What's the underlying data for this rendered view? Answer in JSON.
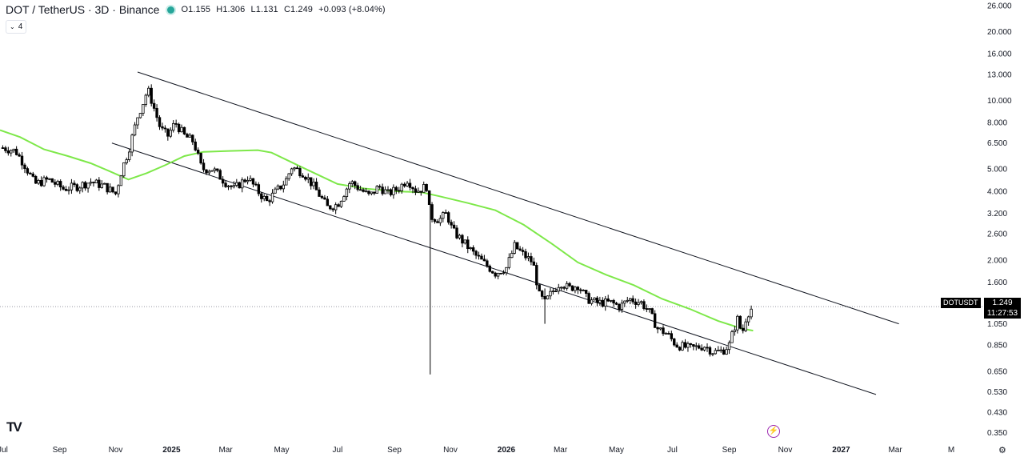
{
  "header": {
    "symbol": "DOT / TetherUS · 3D · Binance",
    "status_color": "#26a69a",
    "open": "O1.155",
    "high": "H1.306",
    "low": "L1.131",
    "close": "C1.249",
    "change": "+0.093 (+8.04%)"
  },
  "indicator_toggle": {
    "icon": "chevron-down-icon",
    "count": "4"
  },
  "price_tag": {
    "symbol": "DOTUSDT",
    "price": "1.249",
    "countdown": "11:27:53"
  },
  "logo_text": "TV",
  "colors": {
    "up": "#ffffff",
    "down": "#000000",
    "ma": "#7ee84a",
    "line": "#131722",
    "price_line": "#9598a1"
  },
  "chart_data": {
    "type": "candlestick",
    "y_scale": "log",
    "ylim": [
      0.33,
      27.5
    ],
    "x_range": [
      "2024-06-28",
      "2027-06-04"
    ],
    "y_ticks": [
      "26.000",
      "20.000",
      "16.000",
      "13.000",
      "10.000",
      "8.000",
      "6.500",
      "5.000",
      "4.000",
      "3.200",
      "2.600",
      "2.000",
      "1.600",
      "1.249",
      "1.050",
      "0.850",
      "0.650",
      "0.530",
      "0.430",
      "0.350"
    ],
    "x_ticks": [
      {
        "label": "Jul",
        "date": "2024-07-01"
      },
      {
        "label": "Sep",
        "date": "2024-09-01"
      },
      {
        "label": "Nov",
        "date": "2024-11-01"
      },
      {
        "label": "2025",
        "date": "2025-01-01"
      },
      {
        "label": "Mar",
        "date": "2025-03-01"
      },
      {
        "label": "May",
        "date": "2025-05-01"
      },
      {
        "label": "Jul",
        "date": "2025-07-01"
      },
      {
        "label": "Sep",
        "date": "2025-09-01"
      },
      {
        "label": "Nov",
        "date": "2025-11-01"
      },
      {
        "label": "2026",
        "date": "2026-01-01"
      },
      {
        "label": "Mar",
        "date": "2026-03-01"
      },
      {
        "label": "May",
        "date": "2026-05-01"
      },
      {
        "label": "Jul",
        "date": "2026-07-01"
      },
      {
        "label": "Sep",
        "date": "2026-09-01"
      },
      {
        "label": "Nov",
        "date": "2026-11-01"
      },
      {
        "label": "2027",
        "date": "2027-01-01"
      },
      {
        "label": "Mar",
        "date": "2027-03-01"
      },
      {
        "label": "M",
        "date": "2027-05-01"
      }
    ],
    "price_path": [
      [
        "2024-07-01",
        6.2
      ],
      [
        "2024-07-15",
        6.0
      ],
      [
        "2024-07-25",
        5.2
      ],
      [
        "2024-08-05",
        4.3
      ],
      [
        "2024-08-20",
        4.5
      ],
      [
        "2024-09-05",
        4.1
      ],
      [
        "2024-09-20",
        4.2
      ],
      [
        "2024-10-05",
        4.4
      ],
      [
        "2024-10-20",
        4.2
      ],
      [
        "2024-11-01",
        3.9
      ],
      [
        "2024-11-08",
        5.0
      ],
      [
        "2024-11-15",
        6.0
      ],
      [
        "2024-11-25",
        8.5
      ],
      [
        "2024-12-02",
        10.0
      ],
      [
        "2024-12-06",
        11.2
      ],
      [
        "2024-12-12",
        9.5
      ],
      [
        "2024-12-20",
        7.5
      ],
      [
        "2024-12-28",
        7.0
      ],
      [
        "2025-01-05",
        8.0
      ],
      [
        "2025-01-15",
        7.0
      ],
      [
        "2025-01-25",
        6.6
      ],
      [
        "2025-02-03",
        5.0
      ],
      [
        "2025-02-15",
        5.0
      ],
      [
        "2025-02-28",
        4.4
      ],
      [
        "2025-03-10",
        4.1
      ],
      [
        "2025-03-25",
        4.6
      ],
      [
        "2025-04-05",
        4.0
      ],
      [
        "2025-04-15",
        3.6
      ],
      [
        "2025-04-25",
        4.0
      ],
      [
        "2025-05-05",
        4.4
      ],
      [
        "2025-05-12",
        5.1
      ],
      [
        "2025-05-25",
        4.8
      ],
      [
        "2025-06-05",
        4.2
      ],
      [
        "2025-06-20",
        3.4
      ],
      [
        "2025-07-01",
        3.5
      ],
      [
        "2025-07-15",
        4.4
      ],
      [
        "2025-07-25",
        4.1
      ],
      [
        "2025-08-05",
        3.8
      ],
      [
        "2025-08-15",
        4.2
      ],
      [
        "2025-08-25",
        3.9
      ],
      [
        "2025-09-05",
        4.1
      ],
      [
        "2025-09-15",
        4.5
      ],
      [
        "2025-09-25",
        4.0
      ],
      [
        "2025-10-06",
        4.2
      ],
      [
        "2025-10-10",
        3.1
      ],
      [
        "2025-10-20",
        3.0
      ],
      [
        "2025-10-28",
        3.2
      ],
      [
        "2025-11-03",
        2.7
      ],
      [
        "2025-11-15",
        2.4
      ],
      [
        "2025-11-28",
        2.1
      ],
      [
        "2025-12-10",
        1.9
      ],
      [
        "2025-12-20",
        1.75
      ],
      [
        "2026-01-01",
        1.85
      ],
      [
        "2026-01-10",
        2.3
      ],
      [
        "2026-01-20",
        2.1
      ],
      [
        "2026-01-30",
        1.95
      ],
      [
        "2026-02-06",
        1.4
      ],
      [
        "2026-02-12",
        1.3
      ],
      [
        "2026-02-20",
        1.45
      ],
      [
        "2026-03-01",
        1.6
      ],
      [
        "2026-03-10",
        1.5
      ],
      [
        "2026-03-20",
        1.55
      ],
      [
        "2026-03-30",
        1.35
      ],
      [
        "2026-04-10",
        1.3
      ],
      [
        "2026-04-25",
        1.3
      ],
      [
        "2026-05-05",
        1.25
      ],
      [
        "2026-05-15",
        1.35
      ],
      [
        "2026-05-28",
        1.3
      ],
      [
        "2026-06-05",
        1.2
      ],
      [
        "2026-06-15",
        1.0
      ],
      [
        "2026-06-25",
        0.95
      ],
      [
        "2026-07-05",
        0.85
      ],
      [
        "2026-07-20",
        0.82
      ],
      [
        "2026-08-05",
        0.84
      ],
      [
        "2026-08-15",
        0.79
      ],
      [
        "2026-08-25",
        0.8
      ],
      [
        "2026-09-01",
        0.85
      ],
      [
        "2026-09-06",
        1.0
      ],
      [
        "2026-09-10",
        1.1
      ],
      [
        "2026-09-15",
        0.95
      ],
      [
        "2026-09-20",
        1.15
      ],
      [
        "2026-09-27",
        1.249
      ]
    ],
    "ma": {
      "points": [
        [
          "2024-06-28",
          7.4
        ],
        [
          "2024-07-20",
          6.9
        ],
        [
          "2024-08-15",
          6.1
        ],
        [
          "2024-09-10",
          5.7
        ],
        [
          "2024-10-05",
          5.3
        ],
        [
          "2024-10-25",
          4.9
        ],
        [
          "2024-11-15",
          4.5
        ],
        [
          "2024-12-05",
          4.8
        ],
        [
          "2024-12-25",
          5.2
        ],
        [
          "2025-01-15",
          5.7
        ],
        [
          "2025-02-05",
          5.95
        ],
        [
          "2025-03-05",
          6.0
        ],
        [
          "2025-04-05",
          6.05
        ],
        [
          "2025-04-20",
          5.9
        ],
        [
          "2025-05-10",
          5.4
        ],
        [
          "2025-06-01",
          4.9
        ],
        [
          "2025-07-01",
          4.3
        ],
        [
          "2025-08-01",
          4.1
        ],
        [
          "2025-09-01",
          4.0
        ],
        [
          "2025-10-01",
          3.95
        ],
        [
          "2025-10-20",
          3.8
        ],
        [
          "2025-11-20",
          3.55
        ],
        [
          "2025-12-20",
          3.3
        ],
        [
          "2026-01-20",
          2.85
        ],
        [
          "2026-02-20",
          2.35
        ],
        [
          "2026-03-20",
          1.95
        ],
        [
          "2026-04-20",
          1.72
        ],
        [
          "2026-05-20",
          1.55
        ],
        [
          "2026-06-20",
          1.35
        ],
        [
          "2026-07-20",
          1.22
        ],
        [
          "2026-08-20",
          1.08
        ],
        [
          "2026-09-15",
          1.0
        ],
        [
          "2026-09-27",
          0.98
        ]
      ]
    },
    "upper_line": [
      [
        "2024-11-25",
        13.3
      ],
      [
        "2027-03-05",
        1.05
      ]
    ],
    "lower_line": [
      [
        "2024-10-28",
        6.5
      ],
      [
        "2027-02-08",
        0.515
      ]
    ],
    "spikes": [
      {
        "date": "2025-10-10",
        "high": 4.0,
        "low": 0.63
      },
      {
        "date": "2026-02-12",
        "high": 1.5,
        "low": 1.05
      }
    ],
    "last_price": 1.249
  }
}
